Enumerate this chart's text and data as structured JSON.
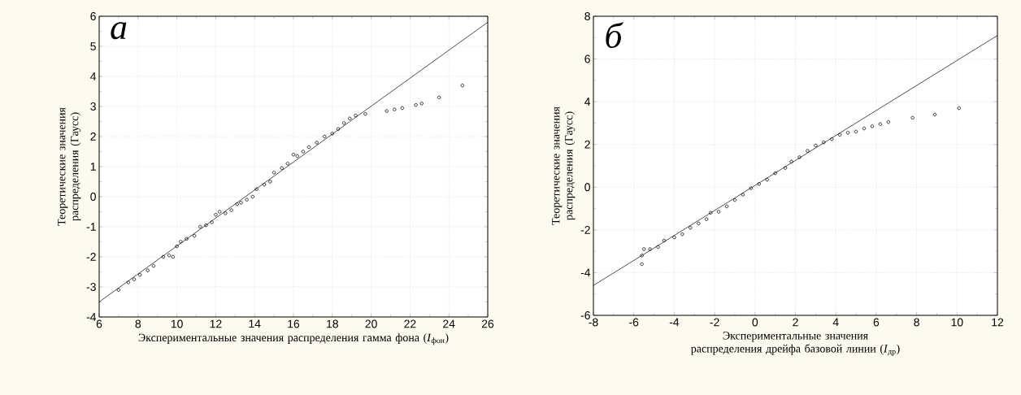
{
  "chart_data": [
    {
      "type": "scatter",
      "annotations": [
        "а"
      ],
      "xlabel": "Экспериментальные значения распределения гамма фона (*I*$_{фон}$)",
      "ylabel": "Теоретические значения распределения (Гаусс)",
      "xlim": [
        6,
        26
      ],
      "ylim": [
        -4,
        6
      ],
      "xticks": [
        6,
        8,
        10,
        12,
        14,
        16,
        18,
        20,
        22,
        24,
        26
      ],
      "yticks": [
        -4,
        -3,
        -2,
        -1,
        0,
        1,
        2,
        3,
        4,
        5,
        6
      ],
      "grid": true,
      "series": [
        {
          "marker": "circle",
          "color": "#000000",
          "x": [
            7,
            7.5,
            7.8,
            8.1,
            8.5,
            8.8,
            9.3,
            9.6,
            9.8,
            10.0,
            10.2,
            10.5,
            10.9,
            11.2,
            11.5,
            11.8,
            12.0,
            12.2,
            12.5,
            12.8,
            13.1,
            13.3,
            13.6,
            13.9,
            14.1,
            14.5,
            14.8,
            15.0,
            15.4,
            15.7,
            16.0,
            16.2,
            16.5,
            16.8,
            17.2,
            17.6,
            18.0,
            18.3,
            18.6,
            18.9,
            19.2,
            19.7,
            20.8,
            21.2,
            21.6,
            22.3,
            22.6,
            23.5,
            24.7
          ],
          "values": [
            -3.1,
            -2.85,
            -2.75,
            -2.6,
            -2.45,
            -2.3,
            -2.0,
            -1.95,
            -2.0,
            -1.65,
            -1.5,
            -1.4,
            -1.3,
            -1.0,
            -0.95,
            -0.85,
            -0.6,
            -0.5,
            -0.55,
            -0.45,
            -0.25,
            -0.2,
            -0.1,
            0.0,
            0.25,
            0.4,
            0.5,
            0.8,
            0.95,
            1.1,
            1.4,
            1.35,
            1.5,
            1.65,
            1.8,
            2.0,
            2.1,
            2.25,
            2.45,
            2.6,
            2.7,
            2.75,
            2.85,
            2.9,
            2.95,
            3.05,
            3.1,
            3.3,
            3.7
          ]
        },
        {
          "type": "line",
          "color": "#000000",
          "x": [
            6,
            26
          ],
          "values": [
            -3.5,
            5.8
          ]
        }
      ]
    },
    {
      "type": "scatter",
      "annotations": [
        "б"
      ],
      "xlabel": "Экспериментальные значения распределения дрейфа базовой линии (*I*$_{др}$)",
      "ylabel": "Теоретические значения распределения (Гаусс)",
      "xlim": [
        -8,
        12
      ],
      "ylim": [
        -6,
        8
      ],
      "xticks": [
        -8,
        -6,
        -4,
        -2,
        0,
        2,
        4,
        6,
        8,
        10,
        12
      ],
      "yticks": [
        -6,
        -4,
        -2,
        0,
        2,
        4,
        6,
        8
      ],
      "grid": true,
      "series": [
        {
          "marker": "circle",
          "color": "#000000",
          "x": [
            -5.6,
            -5.6,
            -5.5,
            -5.2,
            -4.8,
            -4.5,
            -4.0,
            -3.6,
            -3.2,
            -2.8,
            -2.4,
            -2.2,
            -1.8,
            -1.4,
            -1.0,
            -0.6,
            -0.2,
            0.2,
            0.6,
            1.0,
            1.5,
            1.8,
            2.2,
            2.6,
            3.0,
            3.4,
            3.8,
            4.2,
            4.6,
            5.0,
            5.4,
            5.8,
            6.2,
            6.6,
            7.8,
            8.9,
            10.1
          ],
          "values": [
            -3.6,
            -3.2,
            -2.9,
            -2.9,
            -2.8,
            -2.5,
            -2.35,
            -2.2,
            -1.9,
            -1.7,
            -1.5,
            -1.2,
            -1.15,
            -0.9,
            -0.6,
            -0.35,
            -0.05,
            0.15,
            0.35,
            0.65,
            0.9,
            1.2,
            1.4,
            1.7,
            1.95,
            2.1,
            2.25,
            2.45,
            2.55,
            2.6,
            2.75,
            2.85,
            2.95,
            3.05,
            3.25,
            3.4,
            3.7
          ]
        },
        {
          "type": "line",
          "color": "#000000",
          "x": [
            -8,
            12
          ],
          "values": [
            -4.6,
            7.1
          ]
        }
      ]
    }
  ]
}
